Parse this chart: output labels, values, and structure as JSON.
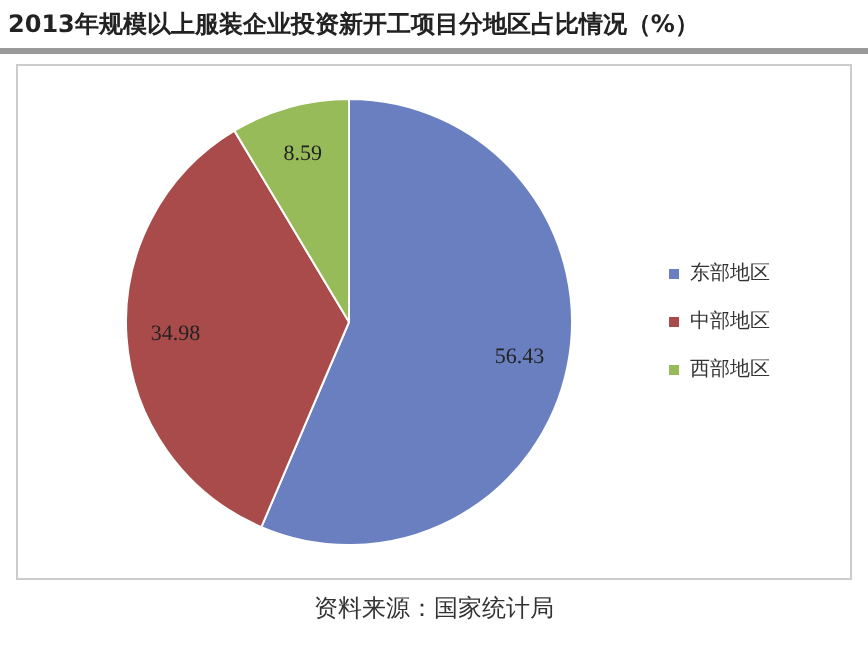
{
  "chart_data": {
    "type": "pie",
    "title": "2013年规模以上服装企业投资新开工项目分地区占比情况（%）",
    "categories": [
      "东部地区",
      "中部地区",
      "西部地区"
    ],
    "values": [
      56.43,
      34.98,
      8.59
    ],
    "colors": [
      "#6a7fbf",
      "#a84b4a",
      "#98bb59"
    ],
    "data_labels": true,
    "legend": "right",
    "annotations": [
      "资料来源：国家统计局"
    ]
  }
}
